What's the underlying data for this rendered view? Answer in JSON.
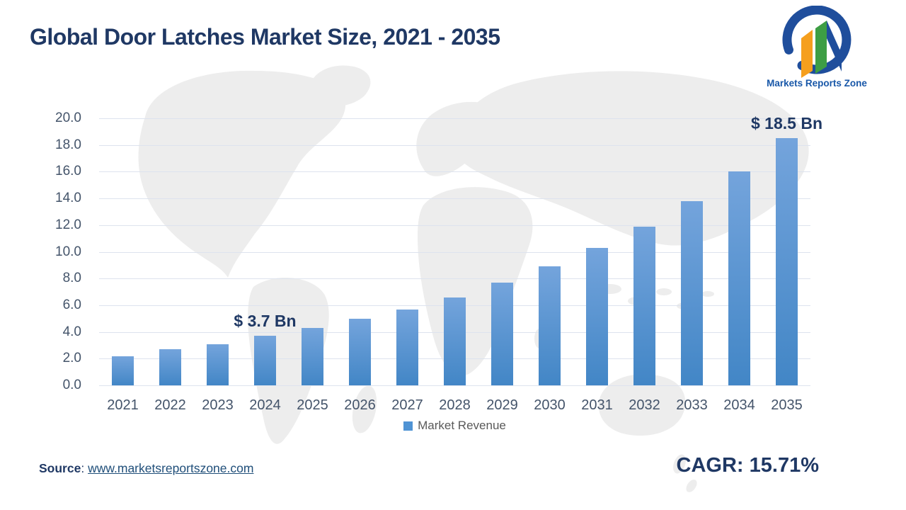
{
  "page": {
    "title": "Global Door Latches Market Size, 2021 - 2035"
  },
  "logo": {
    "text": "Markets Reports Zone"
  },
  "chart_data": {
    "type": "bar",
    "title": "Global Door Latches Market Size, 2021 - 2035",
    "categories": [
      "2021",
      "2022",
      "2023",
      "2024",
      "2025",
      "2026",
      "2027",
      "2028",
      "2029",
      "2030",
      "2031",
      "2032",
      "2033",
      "2034",
      "2035"
    ],
    "series": [
      {
        "name": "Market Revenue",
        "values": [
          2.2,
          2.7,
          3.1,
          3.7,
          4.3,
          5.0,
          5.7,
          6.6,
          7.7,
          8.9,
          10.3,
          11.9,
          13.8,
          16.0,
          18.5
        ]
      }
    ],
    "ylim": [
      0,
      20
    ],
    "ytick_step": 2,
    "ytick_labels": [
      "0.0",
      "2.0",
      "4.0",
      "6.0",
      "8.0",
      "10.0",
      "12.0",
      "14.0",
      "16.0",
      "18.0",
      "20.0"
    ],
    "grid": true,
    "legend_position": "bottom",
    "annotations": [
      {
        "category": "2024",
        "text": "$ 3.7 Bn"
      },
      {
        "category": "2035",
        "text": "$ 18.5 Bn"
      }
    ]
  },
  "legend": {
    "label": "Market Revenue"
  },
  "footer": {
    "source_label": "Source",
    "source_separator": ": ",
    "source_url": "www.marketsreportszone.com",
    "cagr": "CAGR: 15.71%"
  },
  "colors": {
    "navy": "#1f3864",
    "tick": "#44546a",
    "legend_text": "#595959",
    "grid": "#dde3ee",
    "bar_top": "#74a4dc",
    "bar_bottom": "#4286c6",
    "legend_marker": "#4f93d4",
    "link": "#1f4e79",
    "map": "#ededed",
    "logo_blue": "#1f4e9c",
    "logo_orange": "#f59f1e",
    "logo_green": "#3d9e44",
    "logo_text": "#1857a8"
  }
}
